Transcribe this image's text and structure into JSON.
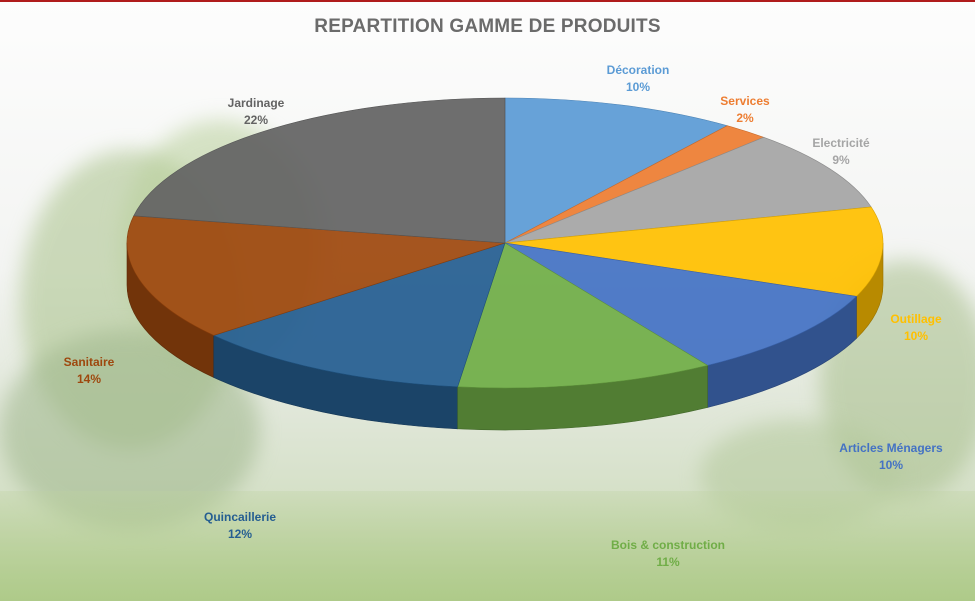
{
  "chart_data": {
    "type": "pie",
    "title": "REPARTITION GAMME DE PRODUITS",
    "slices": [
      {
        "label": "Décoration",
        "value": 10,
        "percent_label": "10%",
        "color": "#5b9bd5"
      },
      {
        "label": "Services",
        "value": 2,
        "percent_label": "2%",
        "color": "#ed7d31"
      },
      {
        "label": "Electricité",
        "value": 9,
        "percent_label": "9%",
        "color": "#a5a5a5"
      },
      {
        "label": "Outillage",
        "value": 10,
        "percent_label": "10%",
        "color": "#ffc000"
      },
      {
        "label": "Articles Ménagers",
        "value": 10,
        "percent_label": "10%",
        "color": "#4472c4"
      },
      {
        "label": "Bois & construction",
        "value": 11,
        "percent_label": "11%",
        "color": "#70ad47"
      },
      {
        "label": "Quincaillerie",
        "value": 12,
        "percent_label": "12%",
        "color": "#255e91"
      },
      {
        "label": "Sanitaire",
        "value": 14,
        "percent_label": "14%",
        "color": "#9e480e"
      },
      {
        "label": "Jardinage",
        "value": 22,
        "percent_label": "22%",
        "color": "#636363"
      }
    ],
    "label_colors": {
      "Décoration": "#5b9bd5",
      "Services": "#ed7d31",
      "Electricité": "#a5a5a5",
      "Outillage": "#ffc000",
      "Articles Ménagers": "#4472c4",
      "Bois & construction": "#70ad47",
      "Quincaillerie": "#255e91",
      "Sanitaire": "#9e480e",
      "Jardinage": "#636363"
    },
    "style": "3d-pie",
    "legend": "none",
    "data_labels": "outside"
  }
}
